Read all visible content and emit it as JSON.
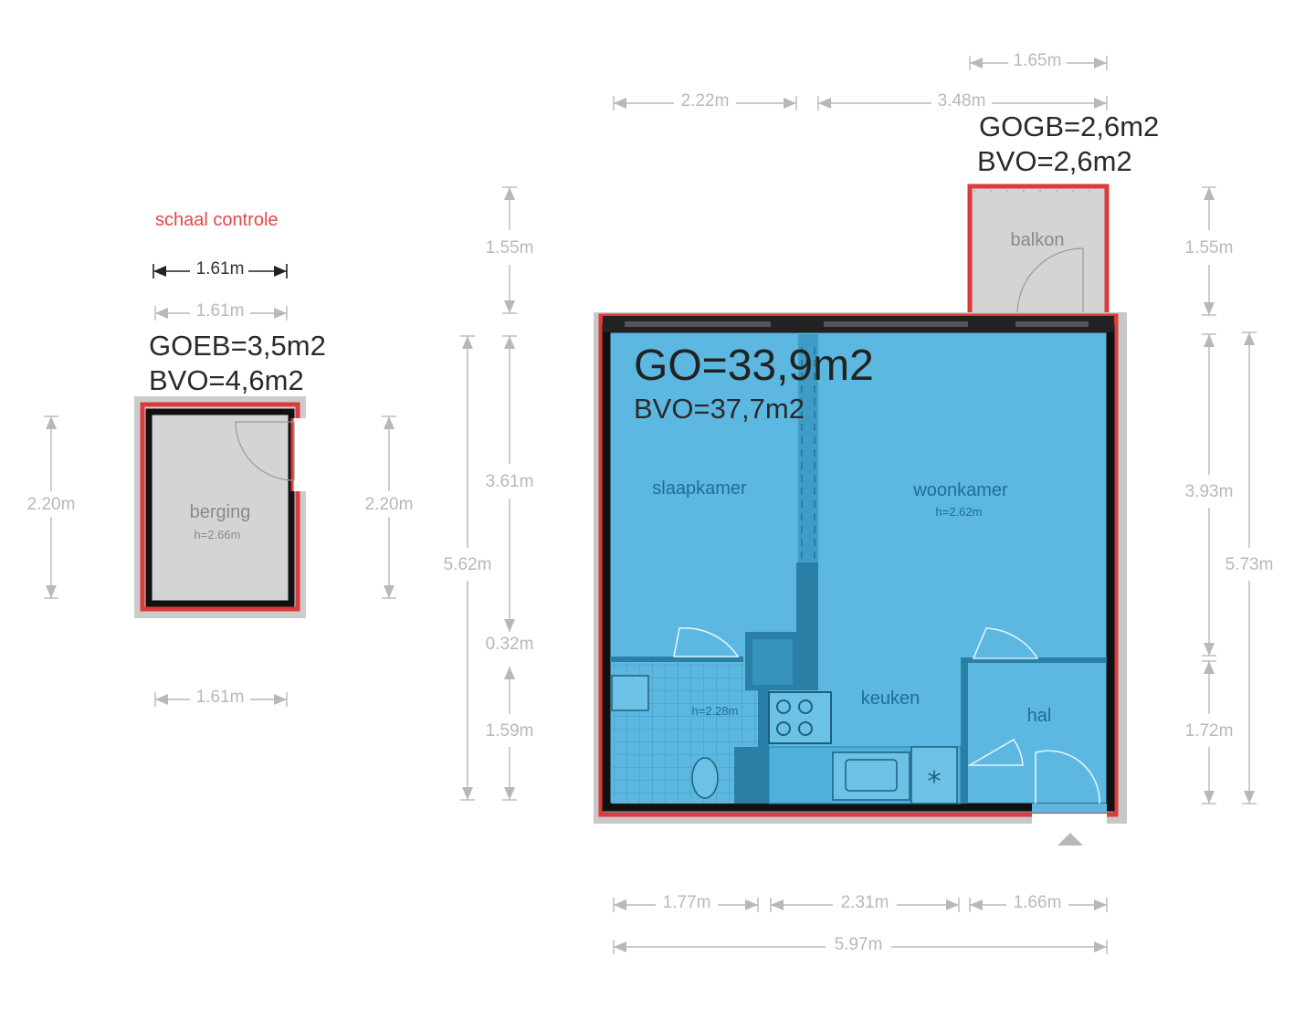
{
  "scale_check": {
    "title": "schaal controle",
    "ref_dim": "1.61m"
  },
  "storage": {
    "goeb": "GOEB=3,5m2",
    "bvo": "BVO=4,6m2",
    "room": "berging",
    "height": "h=2.66m",
    "dims": {
      "top": "1.61m",
      "bottom": "1.61m",
      "left": "2.20m",
      "right": "2.20m"
    }
  },
  "balcony": {
    "gogb": "GOGB=2,6m2",
    "bvo": "BVO=2,6m2",
    "room": "balkon",
    "dims": {
      "width": "1.65m",
      "left_height": "1.55m",
      "right_height": "1.55m"
    }
  },
  "apartment": {
    "go": "GO=33,9m2",
    "bvo": "BVO=37,7m2",
    "rooms": {
      "bedroom": "slaapkamer",
      "living": "woonkamer",
      "living_height": "h=2.62m",
      "kitchen": "keuken",
      "hall": "hal",
      "bath_height": "h=2.28m"
    },
    "dims": {
      "top_left": "2.22m",
      "top_right": "3.48m",
      "left_total": "5.62m",
      "left_upper": "3.61m",
      "left_mid": "0.32m",
      "left_lower": "1.59m",
      "right_upper": "3.93m",
      "right_lower": "1.72m",
      "right_total": "5.73m",
      "bottom_a": "1.77m",
      "bottom_b": "2.31m",
      "bottom_c": "1.66m",
      "bottom_total": "5.97m"
    }
  },
  "colors": {
    "room_fill": "#5cb8e0",
    "dark_fill": "#2a7fa6",
    "wall": "#111111",
    "outline_red": "#dd3a3a",
    "storage_fill": "#d4d4d4",
    "dim_grey": "#b8b8b8"
  }
}
